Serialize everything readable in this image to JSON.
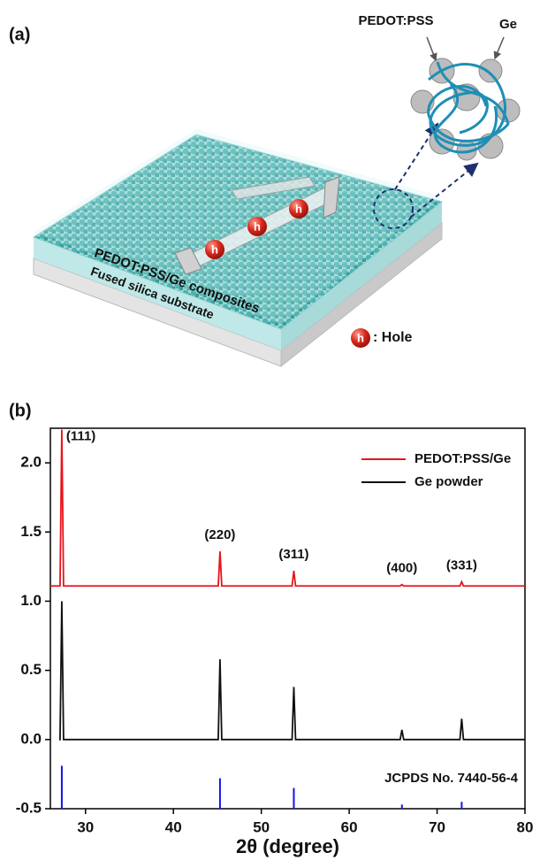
{
  "panel_a": {
    "label": "(a)",
    "inset_polymer": "PEDOT:PSS",
    "inset_particle": "Ge",
    "carrier_symbols": [
      "h",
      "h",
      "h"
    ],
    "film_label": "PEDOT:PSS/Ge composites",
    "substrate_label": "Fused silica substrate",
    "legend_symbol": "h",
    "legend_text": ": Hole"
  },
  "chart_data": {
    "type": "line",
    "panel_label": "(b)",
    "x_label": "2θ (degree)",
    "xlim": [
      26,
      80
    ],
    "xticks": [
      30,
      40,
      50,
      60,
      70,
      80
    ],
    "ylim": [
      -0.5,
      2.25
    ],
    "yticks": [
      -0.5,
      {
        "value": 0,
        "label": "0.0"
      },
      0.5,
      {
        "value": 1,
        "label": "1.0"
      },
      1.5,
      {
        "value": 2,
        "label": "2.0"
      }
    ],
    "legend": "top-right",
    "series": [
      {
        "name": "PEDOT:PSS/Ge",
        "color": "#e8141b",
        "x": [
          26,
          27.1,
          27.3,
          27.5,
          45.1,
          45.3,
          45.5,
          53.5,
          53.7,
          53.9,
          65.8,
          66,
          66.2,
          72.6,
          72.8,
          73,
          80
        ],
        "values": [
          1.11,
          1.11,
          2.24,
          1.11,
          1.11,
          1.36,
          1.11,
          1.11,
          1.22,
          1.11,
          1.11,
          1.12,
          1.11,
          1.11,
          1.14,
          1.11,
          1.11
        ]
      },
      {
        "name": "Ge powder",
        "color": "#111111",
        "x": [
          27,
          27.1,
          27.3,
          27.5,
          45.1,
          45.3,
          45.5,
          53.5,
          53.7,
          53.9,
          65.8,
          66,
          66.2,
          72.6,
          72.8,
          73,
          80
        ],
        "values": [
          0,
          0,
          1.0,
          0,
          0,
          0.58,
          0,
          0,
          0.38,
          0,
          0,
          0.07,
          0,
          0,
          0.15,
          0,
          0
        ]
      }
    ],
    "reference": {
      "label": "JCPDS No. 7440-56-4",
      "color": "#1414e6",
      "x": [
        27.3,
        45.3,
        53.7,
        66,
        72.8
      ],
      "values": [
        -0.19,
        -0.28,
        -0.35,
        -0.47,
        -0.45
      ]
    },
    "peak_labels": [
      "(111)",
      "(220)",
      "(311)",
      "(400)",
      "(331)"
    ]
  }
}
